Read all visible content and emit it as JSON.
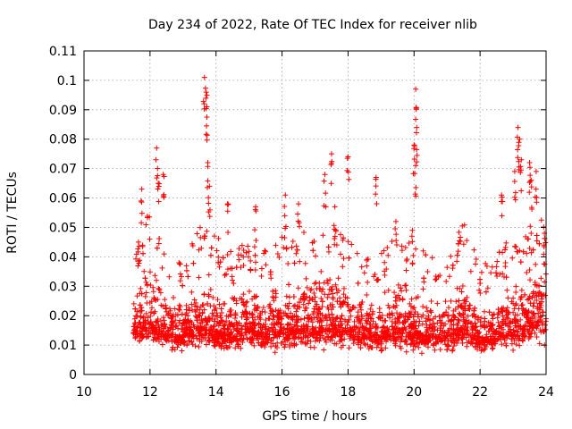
{
  "chart_data": {
    "type": "scatter",
    "title": "Day 234 of 2022, Rate Of TEC Index for receiver nlib",
    "xlabel": "GPS time / hours",
    "ylabel": "ROTI / TECUs",
    "xlim": [
      10,
      24
    ],
    "ylim": [
      0,
      0.11
    ],
    "xticks": [
      "10",
      "12",
      "14",
      "16",
      "18",
      "20",
      "22",
      "24"
    ],
    "yticks": [
      "0",
      "0.01",
      "0.02",
      "0.03",
      "0.04",
      "0.05",
      "0.06",
      "0.07",
      "0.08",
      "0.09",
      "0.1",
      "0.11"
    ],
    "grid": true,
    "marker": "+",
    "color": "#ff0000",
    "series": [
      {
        "x_range": [
          11.5,
          24.0
        ],
        "typical_y_range": [
          0.005,
          0.04
        ],
        "notable_points": [
          [
            11.65,
            0.045
          ],
          [
            11.75,
            0.063
          ],
          [
            12.2,
            0.077
          ],
          [
            12.25,
            0.065
          ],
          [
            12.4,
            0.068
          ],
          [
            13.65,
            0.101
          ],
          [
            13.7,
            0.096
          ],
          [
            13.72,
            0.091
          ],
          [
            13.75,
            0.072
          ],
          [
            13.8,
            0.064
          ],
          [
            14.35,
            0.058
          ],
          [
            15.2,
            0.057
          ],
          [
            16.1,
            0.061
          ],
          [
            16.5,
            0.058
          ],
          [
            17.3,
            0.068
          ],
          [
            17.5,
            0.075
          ],
          [
            17.6,
            0.057
          ],
          [
            18.0,
            0.074
          ],
          [
            18.85,
            0.067
          ],
          [
            19.45,
            0.052
          ],
          [
            19.95,
            0.049
          ],
          [
            20.05,
            0.097
          ],
          [
            20.08,
            0.084
          ],
          [
            20.0,
            0.078
          ],
          [
            20.05,
            0.071
          ],
          [
            22.65,
            0.061
          ],
          [
            23.05,
            0.069
          ],
          [
            23.15,
            0.084
          ],
          [
            23.2,
            0.08
          ],
          [
            23.25,
            0.073
          ],
          [
            23.5,
            0.072
          ],
          [
            23.55,
            0.066
          ],
          [
            23.7,
            0.069
          ],
          [
            23.95,
            0.048
          ]
        ],
        "hour_envelope": [
          [
            11.5,
            0.008,
            0.035
          ],
          [
            12.0,
            0.006,
            0.045
          ],
          [
            12.5,
            0.007,
            0.03
          ],
          [
            13.0,
            0.006,
            0.03
          ],
          [
            13.5,
            0.007,
            0.04
          ],
          [
            14.0,
            0.006,
            0.035
          ],
          [
            14.5,
            0.007,
            0.03
          ],
          [
            15.0,
            0.008,
            0.035
          ],
          [
            15.5,
            0.007,
            0.03
          ],
          [
            16.0,
            0.007,
            0.035
          ],
          [
            16.5,
            0.008,
            0.035
          ],
          [
            17.0,
            0.007,
            0.04
          ],
          [
            17.5,
            0.007,
            0.04
          ],
          [
            18.0,
            0.008,
            0.035
          ],
          [
            18.5,
            0.007,
            0.028
          ],
          [
            19.0,
            0.007,
            0.03
          ],
          [
            19.5,
            0.007,
            0.035
          ],
          [
            20.0,
            0.006,
            0.035
          ],
          [
            20.5,
            0.007,
            0.028
          ],
          [
            21.0,
            0.006,
            0.03
          ],
          [
            21.5,
            0.007,
            0.04
          ],
          [
            22.0,
            0.006,
            0.026
          ],
          [
            22.5,
            0.007,
            0.03
          ],
          [
            23.0,
            0.007,
            0.035
          ],
          [
            23.5,
            0.008,
            0.04
          ],
          [
            24.0,
            0.008,
            0.045
          ]
        ]
      }
    ]
  }
}
